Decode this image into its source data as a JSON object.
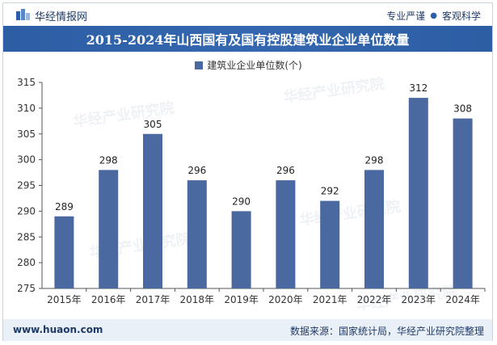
{
  "header": {
    "brand": "华经情报网",
    "tagline_left": "专业严谨",
    "tagline_right": "客观科学"
  },
  "watermark": "华经产业研究院",
  "footer": {
    "website": "www.huaon.com",
    "source": "数据来源：国家统计局，华经产业研究院整理"
  },
  "colors": {
    "bar": "#4a69a0",
    "title_bg": "#2d5ea4"
  },
  "chart_data": {
    "type": "bar",
    "title": "2015-2024年山西国有及国有控股建筑业企业单位数量",
    "categories": [
      "2015年",
      "2016年",
      "2017年",
      "2018年",
      "2019年",
      "2020年",
      "2021年",
      "2022年",
      "2023年",
      "2024年"
    ],
    "series": [
      {
        "name": "建筑业企业单位数(个)",
        "values": [
          289,
          298,
          305,
          296,
          290,
          296,
          292,
          298,
          312,
          308
        ]
      }
    ],
    "ylim": [
      275,
      315
    ],
    "yticks": [
      275,
      280,
      285,
      290,
      295,
      300,
      305,
      310,
      315
    ],
    "legend": "top-center",
    "grid": false,
    "data_labels": true
  }
}
